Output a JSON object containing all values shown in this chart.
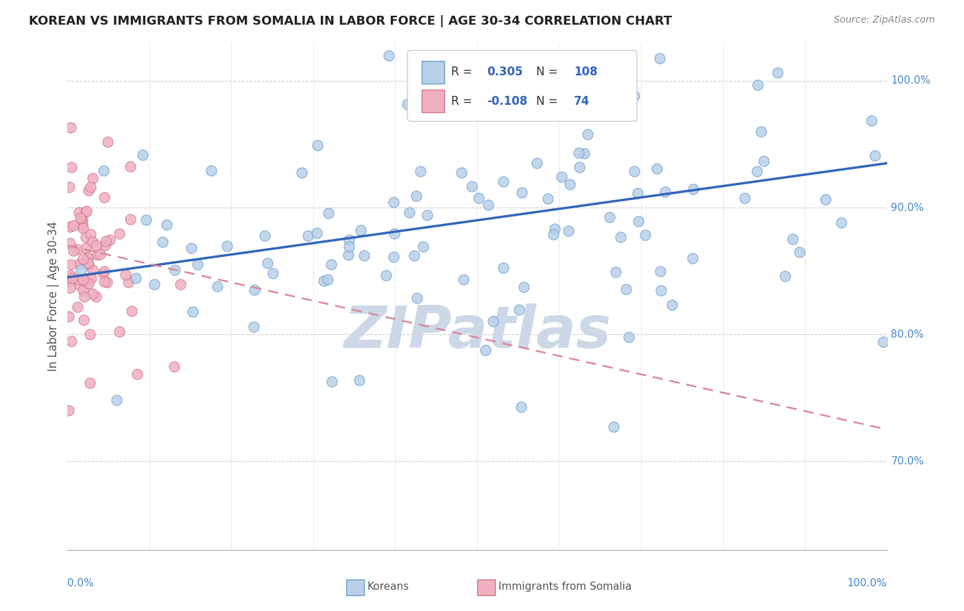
{
  "title": "KOREAN VS IMMIGRANTS FROM SOMALIA IN LABOR FORCE | AGE 30-34 CORRELATION CHART",
  "source": "Source: ZipAtlas.com",
  "ylabel": "In Labor Force | Age 30-34",
  "ytick_vals": [
    0.7,
    0.8,
    0.9,
    1.0
  ],
  "ytick_labels": [
    "70.0%",
    "80.0%",
    "90.0%",
    "100.0%"
  ],
  "xlim": [
    0.0,
    1.0
  ],
  "ylim": [
    0.63,
    1.03
  ],
  "blue_fill": "#b8d0e8",
  "blue_edge": "#6699cc",
  "pink_fill": "#f0b0c0",
  "pink_edge": "#d07080",
  "blue_line_color": "#3366bb",
  "pink_line_color": "#dd8899",
  "title_color": "#222222",
  "axis_label_color": "#4488cc",
  "watermark_color": "#ccd8e8",
  "grid_color": "#cccccc",
  "r1": "0.305",
  "n1": "108",
  "r2": "-0.108",
  "n2": "74",
  "blue_trend_x": [
    0.0,
    1.0
  ],
  "blue_trend_y": [
    0.845,
    0.935
  ],
  "pink_trend_x": [
    0.0,
    1.0
  ],
  "pink_trend_y": [
    0.87,
    0.725
  ]
}
